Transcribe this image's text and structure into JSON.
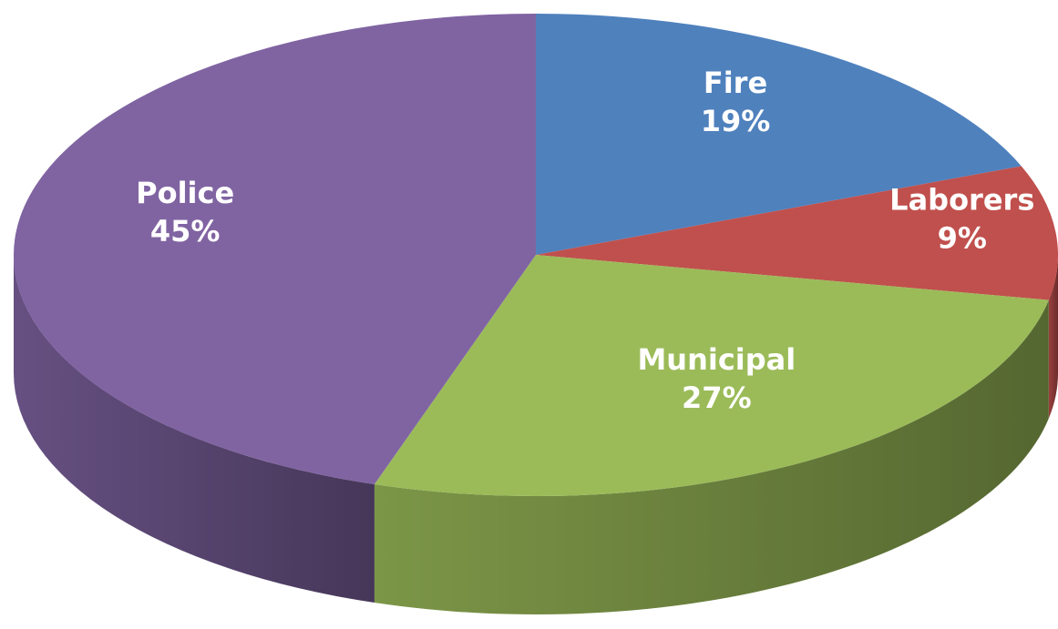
{
  "chart_data": {
    "type": "pie",
    "categories": [
      "Fire",
      "Laborers",
      "Municipal",
      "Police"
    ],
    "values": [
      19,
      9,
      27,
      45
    ],
    "value_labels": [
      "19%",
      "9%",
      "27%",
      "45%"
    ],
    "colors": [
      "#4f81bd",
      "#c0504d",
      "#9bbb59",
      "#8064a2"
    ]
  }
}
